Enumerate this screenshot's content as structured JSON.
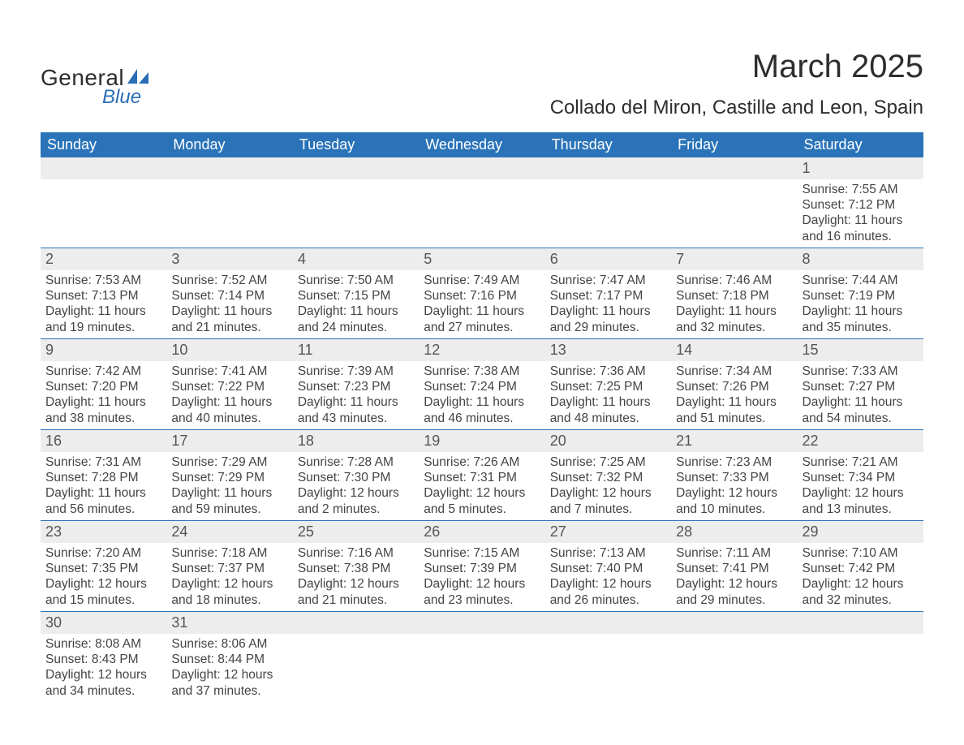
{
  "brand": {
    "general": "General",
    "blue": "Blue"
  },
  "header": {
    "month_title": "March 2025",
    "location": "Collado del Miron, Castille and Leon, Spain"
  },
  "colors": {
    "header_bg": "#2a73b8",
    "header_text": "#ffffff",
    "daynum_bg": "#ededed",
    "row_border": "#2a73b8",
    "body_text": "#444444",
    "logo_blue": "#2a6db5"
  },
  "weekdays": [
    "Sunday",
    "Monday",
    "Tuesday",
    "Wednesday",
    "Thursday",
    "Friday",
    "Saturday"
  ],
  "weeks": [
    [
      null,
      null,
      null,
      null,
      null,
      null,
      {
        "n": "1",
        "sunrise": "Sunrise: 7:55 AM",
        "sunset": "Sunset: 7:12 PM",
        "day1": "Daylight: 11 hours",
        "day2": "and 16 minutes."
      }
    ],
    [
      {
        "n": "2",
        "sunrise": "Sunrise: 7:53 AM",
        "sunset": "Sunset: 7:13 PM",
        "day1": "Daylight: 11 hours",
        "day2": "and 19 minutes."
      },
      {
        "n": "3",
        "sunrise": "Sunrise: 7:52 AM",
        "sunset": "Sunset: 7:14 PM",
        "day1": "Daylight: 11 hours",
        "day2": "and 21 minutes."
      },
      {
        "n": "4",
        "sunrise": "Sunrise: 7:50 AM",
        "sunset": "Sunset: 7:15 PM",
        "day1": "Daylight: 11 hours",
        "day2": "and 24 minutes."
      },
      {
        "n": "5",
        "sunrise": "Sunrise: 7:49 AM",
        "sunset": "Sunset: 7:16 PM",
        "day1": "Daylight: 11 hours",
        "day2": "and 27 minutes."
      },
      {
        "n": "6",
        "sunrise": "Sunrise: 7:47 AM",
        "sunset": "Sunset: 7:17 PM",
        "day1": "Daylight: 11 hours",
        "day2": "and 29 minutes."
      },
      {
        "n": "7",
        "sunrise": "Sunrise: 7:46 AM",
        "sunset": "Sunset: 7:18 PM",
        "day1": "Daylight: 11 hours",
        "day2": "and 32 minutes."
      },
      {
        "n": "8",
        "sunrise": "Sunrise: 7:44 AM",
        "sunset": "Sunset: 7:19 PM",
        "day1": "Daylight: 11 hours",
        "day2": "and 35 minutes."
      }
    ],
    [
      {
        "n": "9",
        "sunrise": "Sunrise: 7:42 AM",
        "sunset": "Sunset: 7:20 PM",
        "day1": "Daylight: 11 hours",
        "day2": "and 38 minutes."
      },
      {
        "n": "10",
        "sunrise": "Sunrise: 7:41 AM",
        "sunset": "Sunset: 7:22 PM",
        "day1": "Daylight: 11 hours",
        "day2": "and 40 minutes."
      },
      {
        "n": "11",
        "sunrise": "Sunrise: 7:39 AM",
        "sunset": "Sunset: 7:23 PM",
        "day1": "Daylight: 11 hours",
        "day2": "and 43 minutes."
      },
      {
        "n": "12",
        "sunrise": "Sunrise: 7:38 AM",
        "sunset": "Sunset: 7:24 PM",
        "day1": "Daylight: 11 hours",
        "day2": "and 46 minutes."
      },
      {
        "n": "13",
        "sunrise": "Sunrise: 7:36 AM",
        "sunset": "Sunset: 7:25 PM",
        "day1": "Daylight: 11 hours",
        "day2": "and 48 minutes."
      },
      {
        "n": "14",
        "sunrise": "Sunrise: 7:34 AM",
        "sunset": "Sunset: 7:26 PM",
        "day1": "Daylight: 11 hours",
        "day2": "and 51 minutes."
      },
      {
        "n": "15",
        "sunrise": "Sunrise: 7:33 AM",
        "sunset": "Sunset: 7:27 PM",
        "day1": "Daylight: 11 hours",
        "day2": "and 54 minutes."
      }
    ],
    [
      {
        "n": "16",
        "sunrise": "Sunrise: 7:31 AM",
        "sunset": "Sunset: 7:28 PM",
        "day1": "Daylight: 11 hours",
        "day2": "and 56 minutes."
      },
      {
        "n": "17",
        "sunrise": "Sunrise: 7:29 AM",
        "sunset": "Sunset: 7:29 PM",
        "day1": "Daylight: 11 hours",
        "day2": "and 59 minutes."
      },
      {
        "n": "18",
        "sunrise": "Sunrise: 7:28 AM",
        "sunset": "Sunset: 7:30 PM",
        "day1": "Daylight: 12 hours",
        "day2": "and 2 minutes."
      },
      {
        "n": "19",
        "sunrise": "Sunrise: 7:26 AM",
        "sunset": "Sunset: 7:31 PM",
        "day1": "Daylight: 12 hours",
        "day2": "and 5 minutes."
      },
      {
        "n": "20",
        "sunrise": "Sunrise: 7:25 AM",
        "sunset": "Sunset: 7:32 PM",
        "day1": "Daylight: 12 hours",
        "day2": "and 7 minutes."
      },
      {
        "n": "21",
        "sunrise": "Sunrise: 7:23 AM",
        "sunset": "Sunset: 7:33 PM",
        "day1": "Daylight: 12 hours",
        "day2": "and 10 minutes."
      },
      {
        "n": "22",
        "sunrise": "Sunrise: 7:21 AM",
        "sunset": "Sunset: 7:34 PM",
        "day1": "Daylight: 12 hours",
        "day2": "and 13 minutes."
      }
    ],
    [
      {
        "n": "23",
        "sunrise": "Sunrise: 7:20 AM",
        "sunset": "Sunset: 7:35 PM",
        "day1": "Daylight: 12 hours",
        "day2": "and 15 minutes."
      },
      {
        "n": "24",
        "sunrise": "Sunrise: 7:18 AM",
        "sunset": "Sunset: 7:37 PM",
        "day1": "Daylight: 12 hours",
        "day2": "and 18 minutes."
      },
      {
        "n": "25",
        "sunrise": "Sunrise: 7:16 AM",
        "sunset": "Sunset: 7:38 PM",
        "day1": "Daylight: 12 hours",
        "day2": "and 21 minutes."
      },
      {
        "n": "26",
        "sunrise": "Sunrise: 7:15 AM",
        "sunset": "Sunset: 7:39 PM",
        "day1": "Daylight: 12 hours",
        "day2": "and 23 minutes."
      },
      {
        "n": "27",
        "sunrise": "Sunrise: 7:13 AM",
        "sunset": "Sunset: 7:40 PM",
        "day1": "Daylight: 12 hours",
        "day2": "and 26 minutes."
      },
      {
        "n": "28",
        "sunrise": "Sunrise: 7:11 AM",
        "sunset": "Sunset: 7:41 PM",
        "day1": "Daylight: 12 hours",
        "day2": "and 29 minutes."
      },
      {
        "n": "29",
        "sunrise": "Sunrise: 7:10 AM",
        "sunset": "Sunset: 7:42 PM",
        "day1": "Daylight: 12 hours",
        "day2": "and 32 minutes."
      }
    ],
    [
      {
        "n": "30",
        "sunrise": "Sunrise: 8:08 AM",
        "sunset": "Sunset: 8:43 PM",
        "day1": "Daylight: 12 hours",
        "day2": "and 34 minutes."
      },
      {
        "n": "31",
        "sunrise": "Sunrise: 8:06 AM",
        "sunset": "Sunset: 8:44 PM",
        "day1": "Daylight: 12 hours",
        "day2": "and 37 minutes."
      },
      null,
      null,
      null,
      null,
      null
    ]
  ]
}
